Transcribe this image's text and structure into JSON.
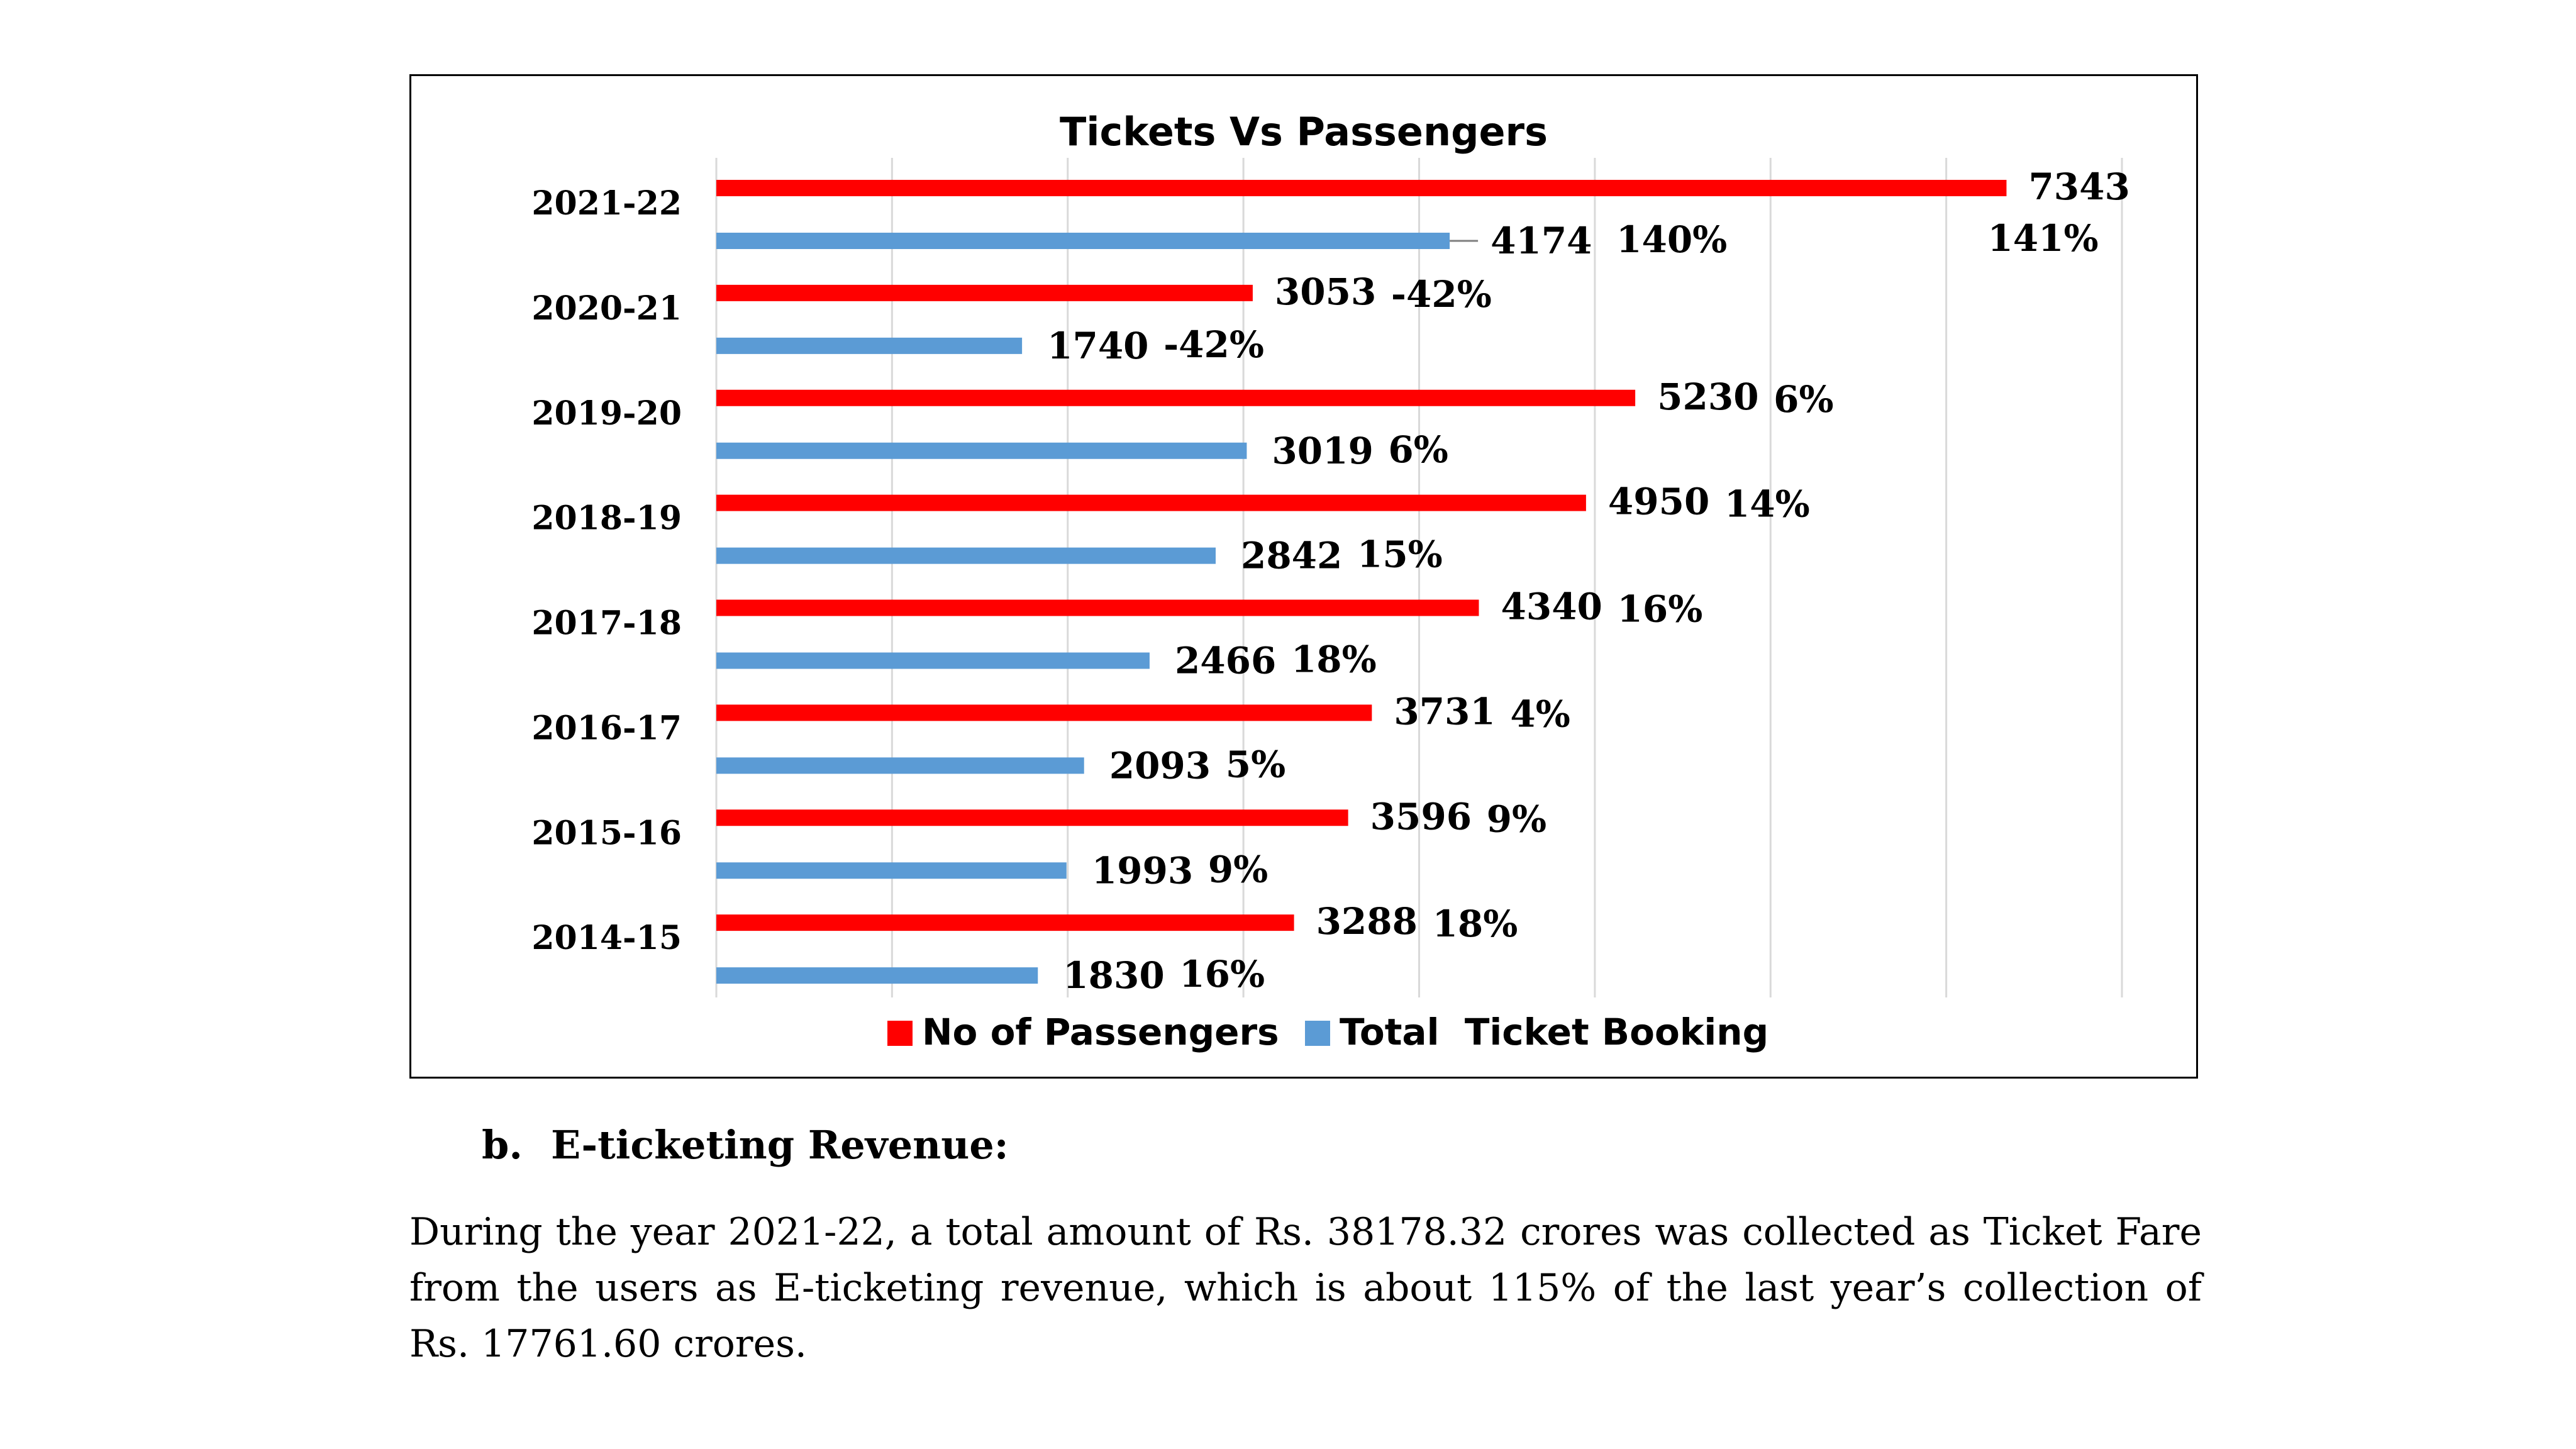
{
  "chart_data": {
    "type": "bar",
    "orientation": "horizontal",
    "title": "Tickets Vs Passengers",
    "categories": [
      "2021-22",
      "2020-21",
      "2019-20",
      "2018-19",
      "2017-18",
      "2016-17",
      "2015-16",
      "2014-15"
    ],
    "series": [
      {
        "name": "No of Passengers",
        "color": "#ff0000",
        "values": [
          7343,
          3053,
          5230,
          4950,
          4340,
          3731,
          3596,
          3288
        ],
        "growth_labels": [
          "141%",
          "-42%",
          "6%",
          "14%",
          "16%",
          "4%",
          "9%",
          "18%"
        ]
      },
      {
        "name": "Total  Ticket Booking",
        "color": "#5b9bd5",
        "values": [
          4174,
          1740,
          3019,
          2842,
          2466,
          2093,
          1993,
          1830
        ],
        "growth_labels": [
          "140%",
          "-42%",
          "6%",
          "15%",
          "18%",
          "5%",
          "9%",
          "16%"
        ]
      }
    ],
    "xlim": [
      0,
      8000
    ],
    "gridlines": true,
    "legend": "bottom-center"
  },
  "section": {
    "marker": "b.",
    "heading": "E-ticketing Revenue:"
  },
  "paragraph": "During the year 2021-22, a total amount of Rs. 38178.32 crores was collected as Ticket Fare from the users as E-ticketing revenue, which is about 115% of the last year’s collection of Rs. 17761.60 crores."
}
